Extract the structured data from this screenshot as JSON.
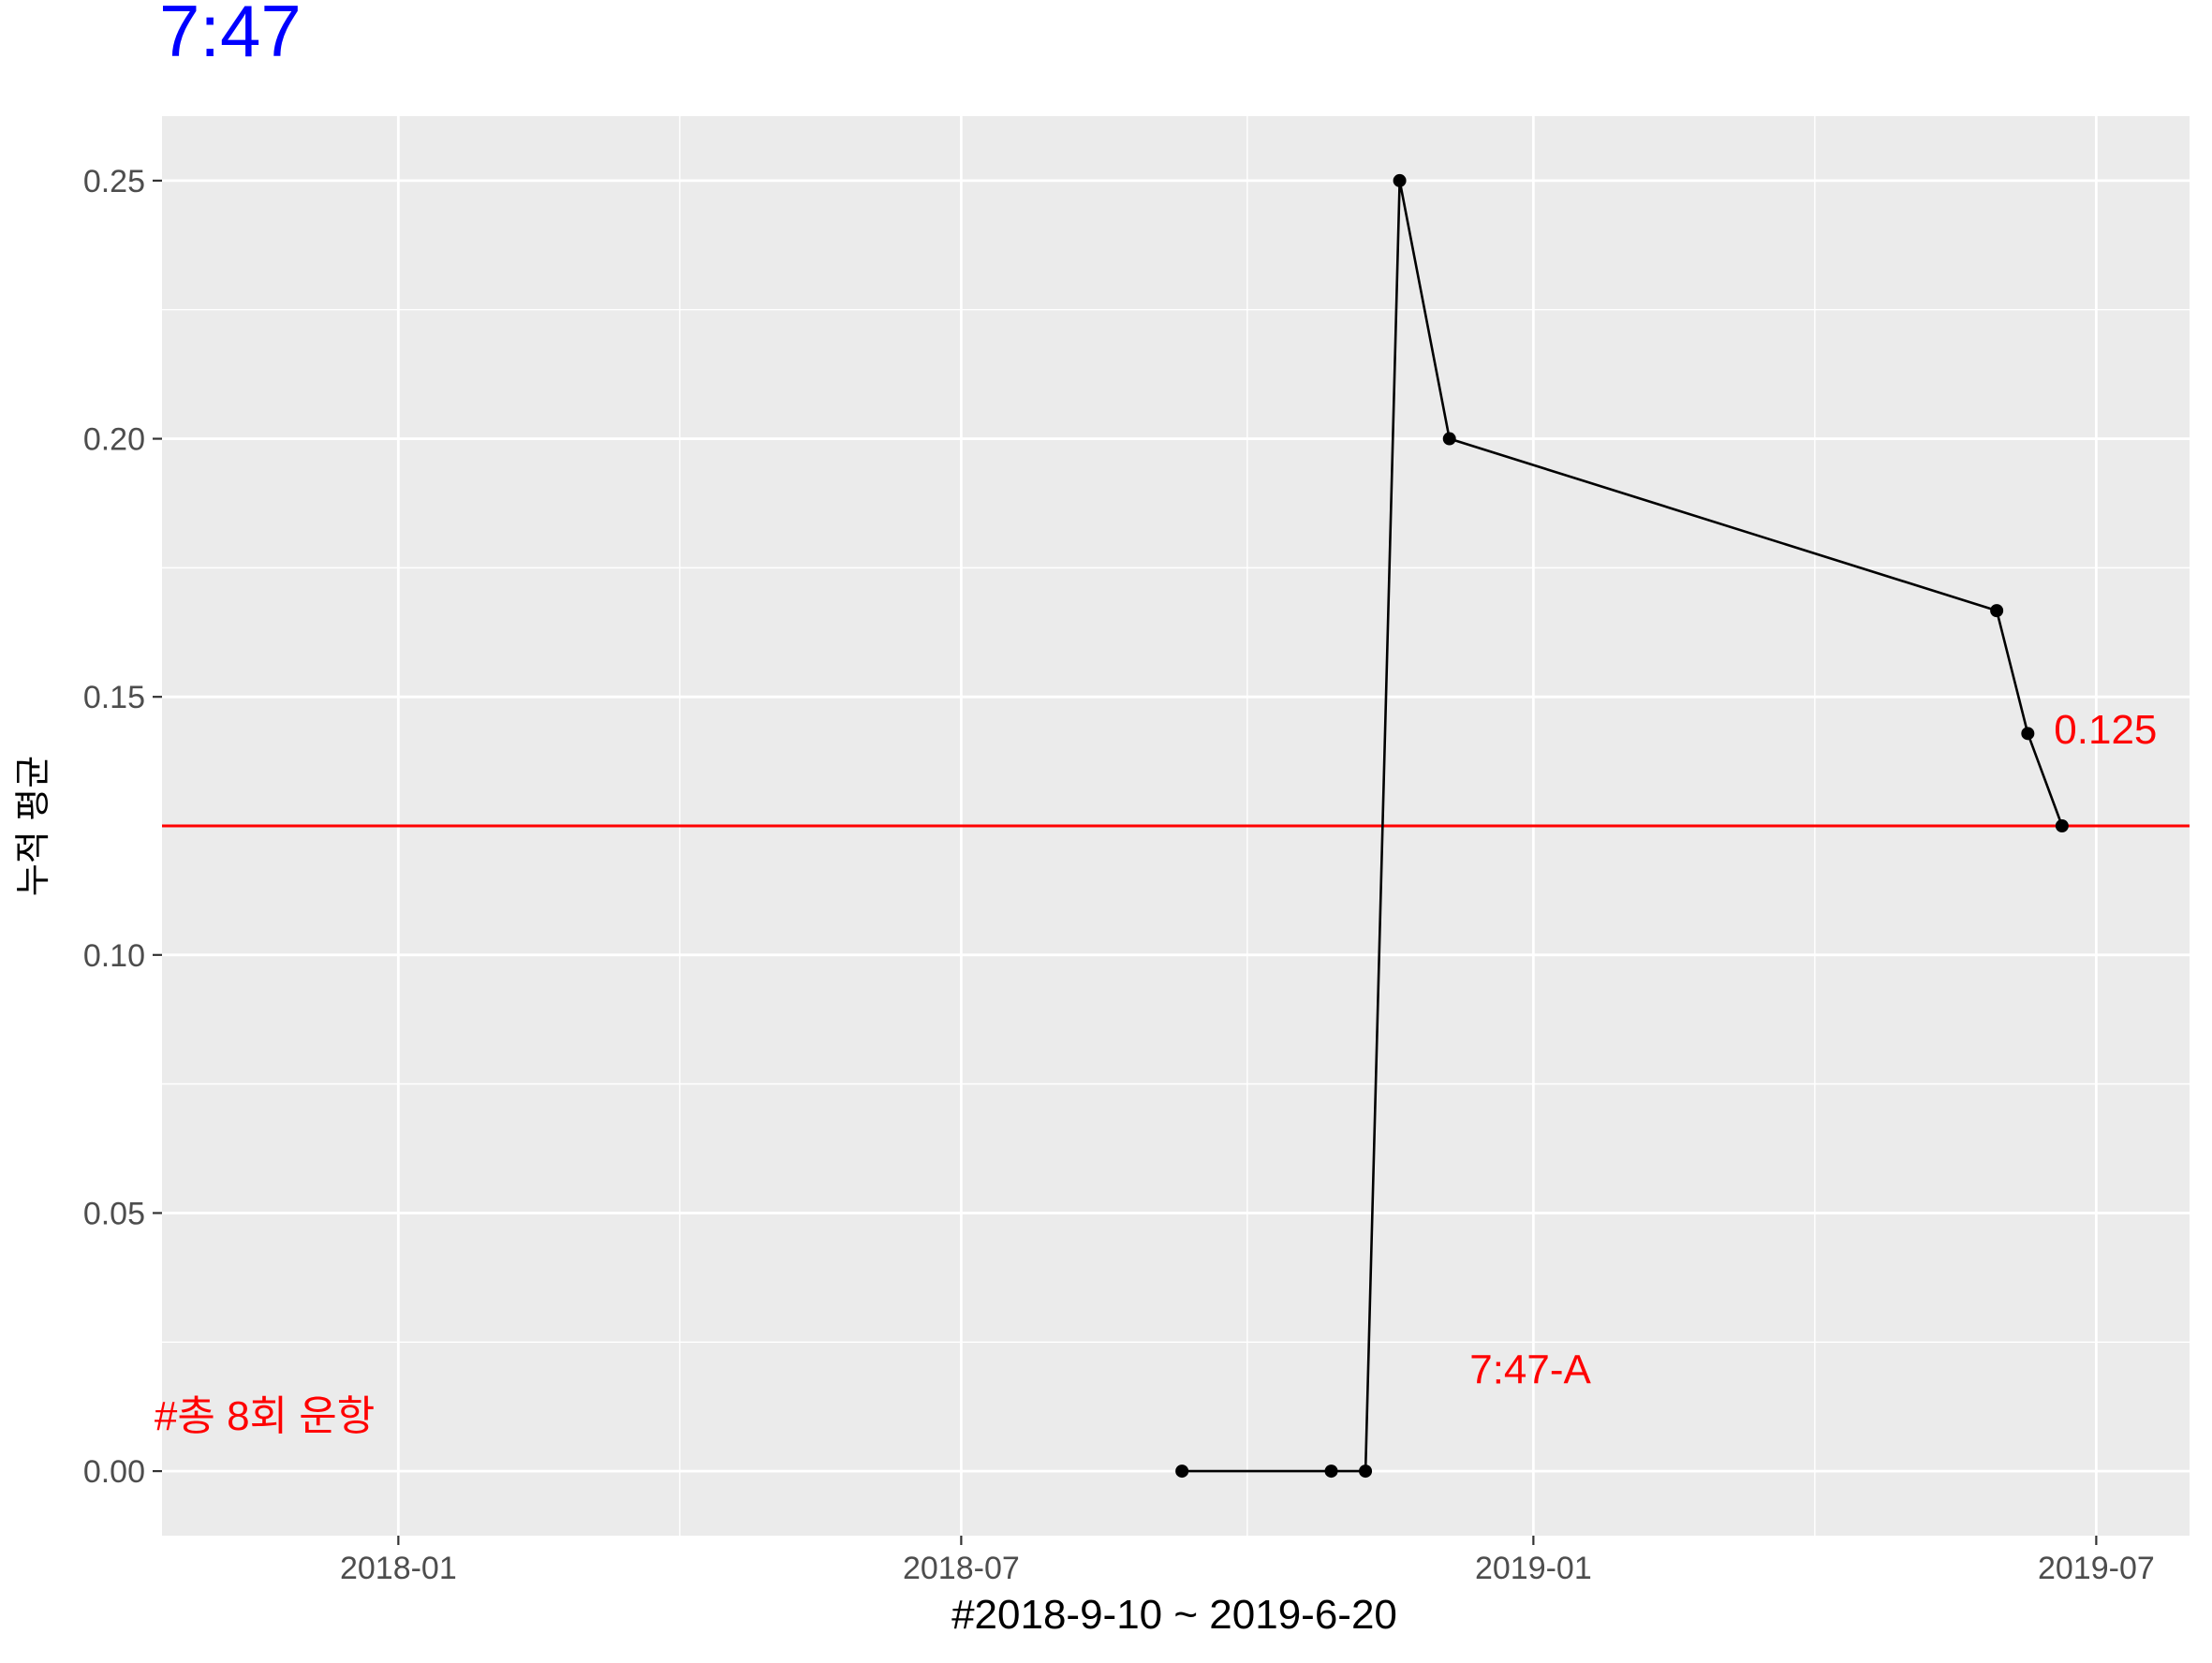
{
  "chart_data": {
    "type": "line",
    "title": "7:47",
    "title_color": "#0000FF",
    "xlabel": "#2018-9-10 ~ 2019-6-20",
    "ylabel": "누적 평균",
    "x_ticks": [
      "2018-01",
      "2018-07",
      "2019-01",
      "2019-07"
    ],
    "y_ticks": [
      "0.00",
      "0.05",
      "0.10",
      "0.15",
      "0.20",
      "0.25"
    ],
    "ylim": [
      -0.0125,
      0.2625
    ],
    "xlim": [
      "2017-10-17",
      "2019-07-31"
    ],
    "series": [
      {
        "x": [
          "2018-09-10",
          "2018-10-28",
          "2018-11-08",
          "2018-11-19",
          "2018-12-05",
          "2019-05-30",
          "2019-06-09",
          "2019-06-20"
        ],
        "y": [
          0.0,
          0.0,
          0.0,
          0.25,
          0.2,
          0.1667,
          0.1429,
          0.125
        ],
        "color": "#000000"
      }
    ],
    "reference_line": {
      "y": 0.125,
      "color": "#FF0000"
    },
    "annotations": [
      {
        "text": "0.125",
        "x": "2019-07-04",
        "y": 0.1435,
        "color": "#FF0000"
      },
      {
        "text": "7:47-A",
        "x": "2018-12-31",
        "y": 0.0195,
        "color": "#FF0000"
      },
      {
        "text": "#총 8회 운항",
        "x": "2017-11-19",
        "y": 0.0105,
        "color": "#FF0000"
      }
    ],
    "grid": true,
    "panel_color": "#EBEBEB"
  }
}
